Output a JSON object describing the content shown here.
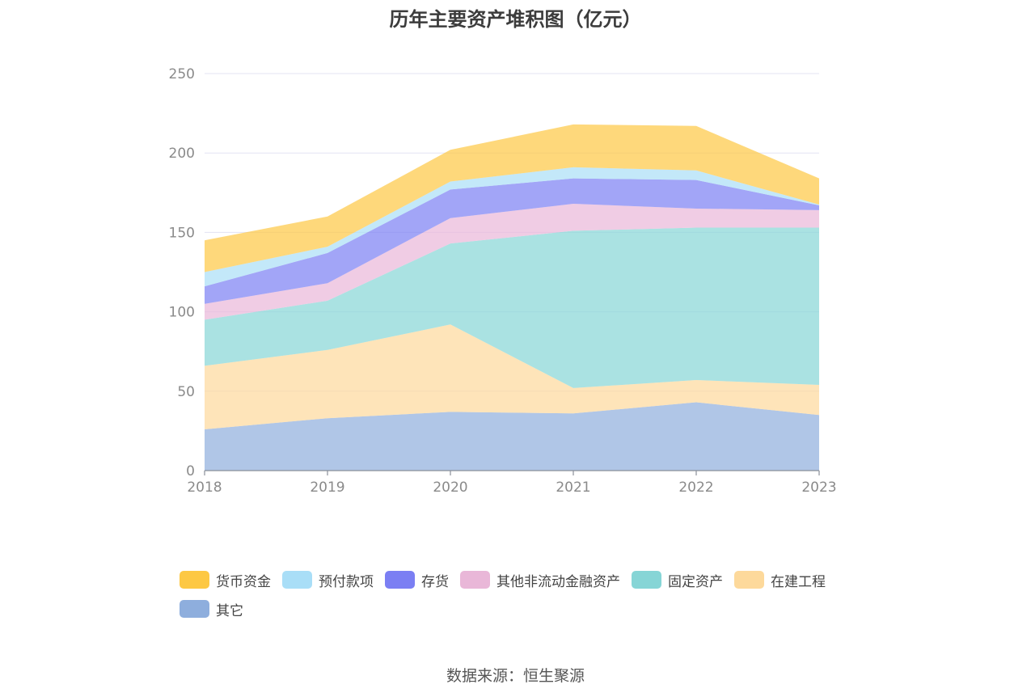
{
  "title": "历年主要资产堆积图（亿元）",
  "source": "数据来源：恒生聚源",
  "chart_data": {
    "type": "area",
    "stacked": true,
    "title": "历年主要资产堆积图（亿元）",
    "x": [
      "2018",
      "2019",
      "2020",
      "2021",
      "2022",
      "2023"
    ],
    "ylim": [
      0,
      250
    ],
    "yticks": [
      0,
      50,
      100,
      150,
      200,
      250
    ],
    "grid": true,
    "legend_position": "bottom",
    "series": [
      {
        "name": "其它",
        "color": "#8eaedd",
        "values": [
          26,
          33,
          37,
          36,
          43,
          35
        ]
      },
      {
        "name": "在建工程",
        "color": "#fdd99b",
        "values": [
          40,
          43,
          55,
          16,
          14,
          19
        ]
      },
      {
        "name": "固定资产",
        "color": "#86d5d6",
        "values": [
          29,
          31,
          51,
          99,
          96,
          99
        ]
      },
      {
        "name": "其他非流动金融资产",
        "color": "#e9b7d8",
        "values": [
          10,
          11,
          16,
          17,
          12,
          11
        ]
      },
      {
        "name": "存货",
        "color": "#7b7ff3",
        "values": [
          11,
          19,
          18,
          16,
          18,
          3
        ]
      },
      {
        "name": "预付款项",
        "color": "#a9def7",
        "values": [
          9,
          4,
          5,
          7,
          6,
          0.5
        ]
      },
      {
        "name": "货币资金",
        "color": "#fdc843",
        "values": [
          20,
          19,
          20,
          27,
          28,
          16.5
        ]
      }
    ],
    "legend_order": [
      "货币资金",
      "预付款项",
      "存货",
      "其他非流动金融资产",
      "固定资产",
      "在建工程",
      "其它"
    ]
  }
}
